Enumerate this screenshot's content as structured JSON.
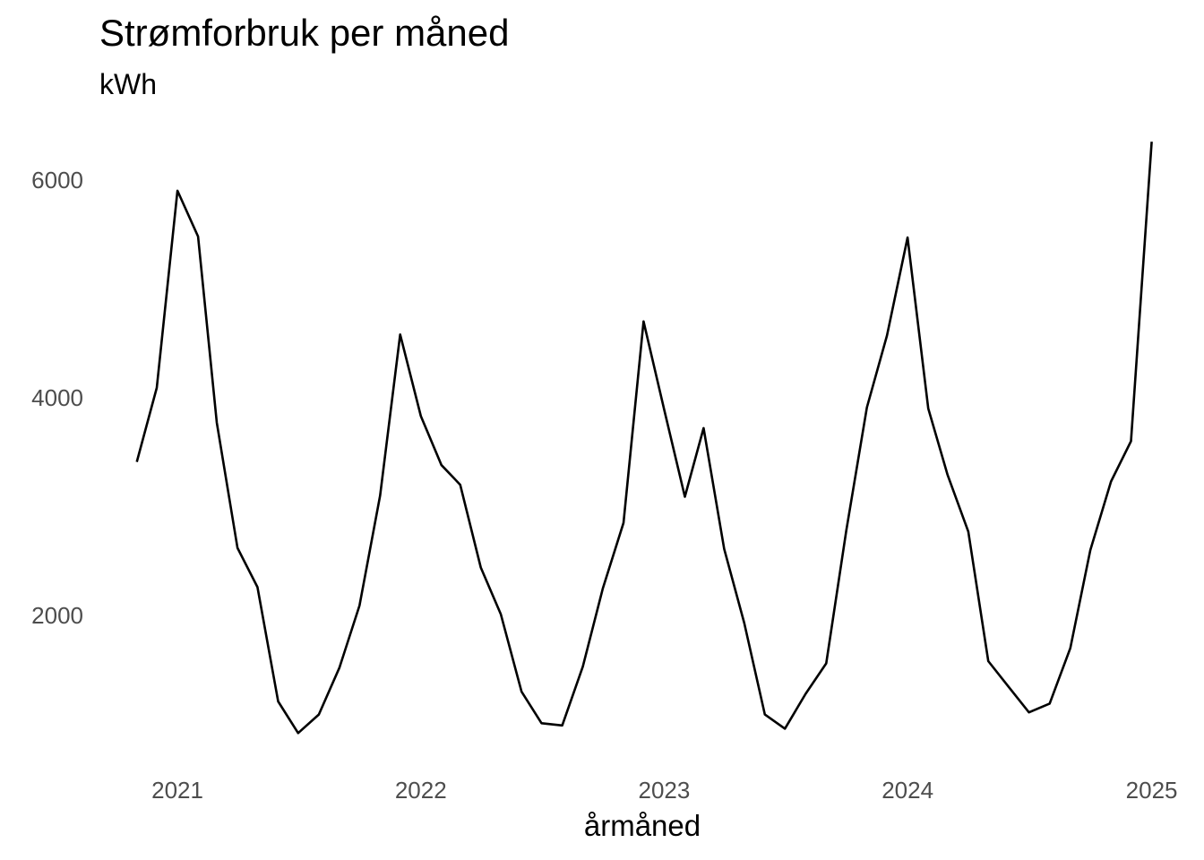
{
  "chart_data": {
    "type": "line",
    "title": "Strømforbruk per måned",
    "subtitle": "kWh",
    "xlabel": "årmåned",
    "ylabel": "",
    "grid": false,
    "legend": "none",
    "line_color": "#000000",
    "xlim": [
      "2020-10-15",
      "2025-01-15"
    ],
    "ylim": [
      700,
      6500
    ],
    "x_ticks": [
      "2021-01-01",
      "2022-01-01",
      "2023-01-01",
      "2024-01-01",
      "2025-01-01"
    ],
    "x_tick_labels": [
      "2021",
      "2022",
      "2023",
      "2024",
      "2025"
    ],
    "y_ticks": [
      2000,
      4000,
      6000
    ],
    "y_tick_labels": [
      "2000",
      "4000",
      "6000"
    ],
    "series": [
      {
        "x": [
          "2020-11",
          "2020-12",
          "2021-01",
          "2021-02",
          "2021-03",
          "2021-04",
          "2021-05",
          "2021-06",
          "2021-07",
          "2021-08",
          "2021-09",
          "2021-10",
          "2021-11",
          "2021-12",
          "2022-01",
          "2022-02",
          "2022-03",
          "2022-04",
          "2022-05",
          "2022-06",
          "2022-07",
          "2022-08",
          "2022-09",
          "2022-10",
          "2022-11",
          "2022-12",
          "2023-01",
          "2023-02",
          "2023-03",
          "2023-04",
          "2023-05",
          "2023-06",
          "2023-07",
          "2023-08",
          "2023-09",
          "2023-10",
          "2023-11",
          "2023-12",
          "2024-01",
          "2024-02",
          "2024-03",
          "2024-04",
          "2024-05",
          "2024-06",
          "2024-07",
          "2024-08",
          "2024-09",
          "2024-10",
          "2024-11",
          "2024-12",
          "2025-01"
        ],
        "values": [
          3410,
          4090,
          5900,
          5480,
          3770,
          2620,
          2260,
          1210,
          920,
          1090,
          1520,
          2090,
          3100,
          4580,
          3830,
          3380,
          3200,
          2440,
          2010,
          1300,
          1010,
          990,
          1530,
          2250,
          2850,
          4700,
          3890,
          3090,
          3720,
          2610,
          1930,
          1090,
          960,
          1280,
          1560,
          2780,
          3910,
          4570,
          5470,
          3900,
          3290,
          2770,
          1580,
          1340,
          1110,
          1190,
          1700,
          2600,
          3230,
          3600,
          6350
        ]
      }
    ]
  }
}
